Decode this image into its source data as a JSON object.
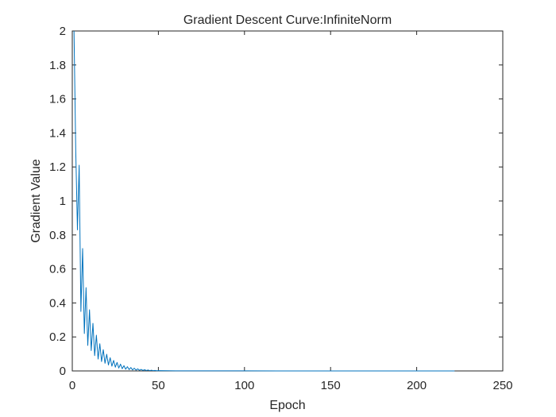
{
  "chart_data": {
    "type": "line",
    "title": "Gradient Descent Curve:InfiniteNorm",
    "xlabel": "Epoch",
    "ylabel": "Gradient Value",
    "xlim": [
      0,
      250
    ],
    "ylim": [
      0,
      2
    ],
    "xticks": [
      0,
      50,
      100,
      150,
      200,
      250
    ],
    "xtick_labels": [
      "0",
      "50",
      "100",
      "150",
      "200",
      "250"
    ],
    "yticks": [
      0,
      0.2,
      0.4,
      0.6,
      0.8,
      1,
      1.2,
      1.4,
      1.6,
      1.8,
      2
    ],
    "ytick_labels": [
      "0",
      "0.2",
      "0.4",
      "0.6",
      "0.8",
      "1",
      "1.2",
      "1.4",
      "1.6",
      "1.8",
      "2"
    ],
    "grid": false,
    "box": true,
    "series": [
      {
        "color": "#0072bd",
        "x": [
          1,
          2,
          3,
          4,
          5,
          6,
          7,
          8,
          9,
          10,
          11,
          12,
          13,
          14,
          15,
          16,
          17,
          18,
          19,
          20,
          21,
          22,
          23,
          24,
          25,
          26,
          27,
          28,
          29,
          30,
          31,
          32,
          33,
          34,
          35,
          36,
          37,
          38,
          39,
          40,
          41,
          42,
          43,
          44,
          45,
          46,
          47,
          48,
          49,
          50,
          55,
          60,
          70,
          80,
          100,
          120,
          150,
          180,
          200,
          222
        ],
        "y": [
          2.0,
          1.3,
          0.83,
          1.21,
          0.35,
          0.72,
          0.22,
          0.49,
          0.15,
          0.36,
          0.12,
          0.28,
          0.09,
          0.21,
          0.07,
          0.16,
          0.055,
          0.125,
          0.045,
          0.098,
          0.035,
          0.078,
          0.028,
          0.062,
          0.022,
          0.05,
          0.017,
          0.04,
          0.013,
          0.031,
          0.01,
          0.025,
          0.008,
          0.02,
          0.006,
          0.016,
          0.005,
          0.012,
          0.004,
          0.009,
          0.003,
          0.007,
          0.0025,
          0.0055,
          0.002,
          0.004,
          0.0015,
          0.003,
          0.001,
          0.002,
          0.001,
          0.0008,
          0.0006,
          0.0005,
          0.0004,
          0.0003,
          0.0002,
          0.00015,
          0.0001,
          0.0001
        ]
      }
    ]
  }
}
